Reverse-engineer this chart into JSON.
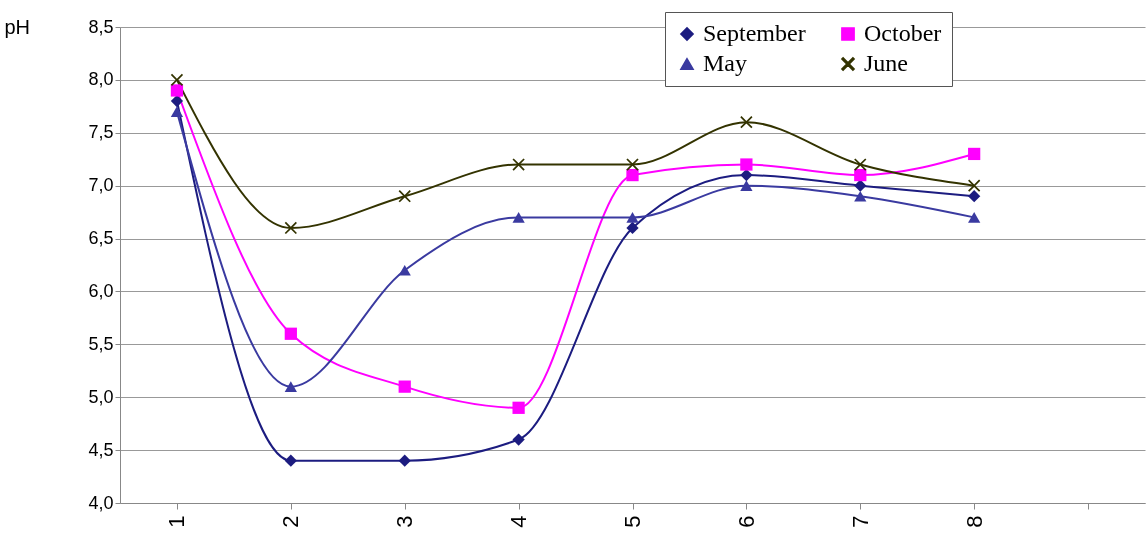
{
  "chart_data": {
    "type": "line",
    "ylabel": "pH",
    "categories": [
      "1",
      "2",
      "3",
      "4",
      "5",
      "6",
      "7",
      "8",
      null
    ],
    "ylim": [
      4.0,
      8.5
    ],
    "yticks": [
      {
        "value": 4.0,
        "label": "4,0"
      },
      {
        "value": 4.5,
        "label": "4,5"
      },
      {
        "value": 5.0,
        "label": "5,0"
      },
      {
        "value": 5.5,
        "label": "5,5"
      },
      {
        "value": 6.0,
        "label": "6,0"
      },
      {
        "value": 6.5,
        "label": "6,5"
      },
      {
        "value": 7.0,
        "label": "7,0"
      },
      {
        "value": 7.5,
        "label": "7,5"
      },
      {
        "value": 8.0,
        "label": "8,0"
      },
      {
        "value": 8.5,
        "label": "8,5"
      }
    ],
    "grid": "y",
    "legend": "top right",
    "line_style": "solid",
    "series": [
      {
        "name": "September",
        "color": "#1c1c80",
        "marker": "diamond",
        "values": [
          7.8,
          4.4,
          4.4,
          4.6,
          6.6,
          7.1,
          7.0,
          6.9,
          null
        ]
      },
      {
        "name": "October",
        "color": "#ff00ff",
        "marker": "square",
        "values": [
          7.9,
          5.6,
          5.1,
          4.9,
          7.1,
          7.2,
          7.1,
          7.3,
          null
        ]
      },
      {
        "name": "May",
        "color": "#3a3aa0",
        "marker": "triangle",
        "values": [
          7.7,
          5.1,
          6.2,
          6.7,
          6.7,
          7.0,
          6.9,
          6.7,
          null
        ]
      },
      {
        "name": "June",
        "color": "#333300",
        "marker": "cross",
        "values": [
          8.0,
          6.6,
          6.9,
          7.2,
          7.2,
          7.6,
          7.2,
          7.0,
          null
        ]
      }
    ]
  }
}
